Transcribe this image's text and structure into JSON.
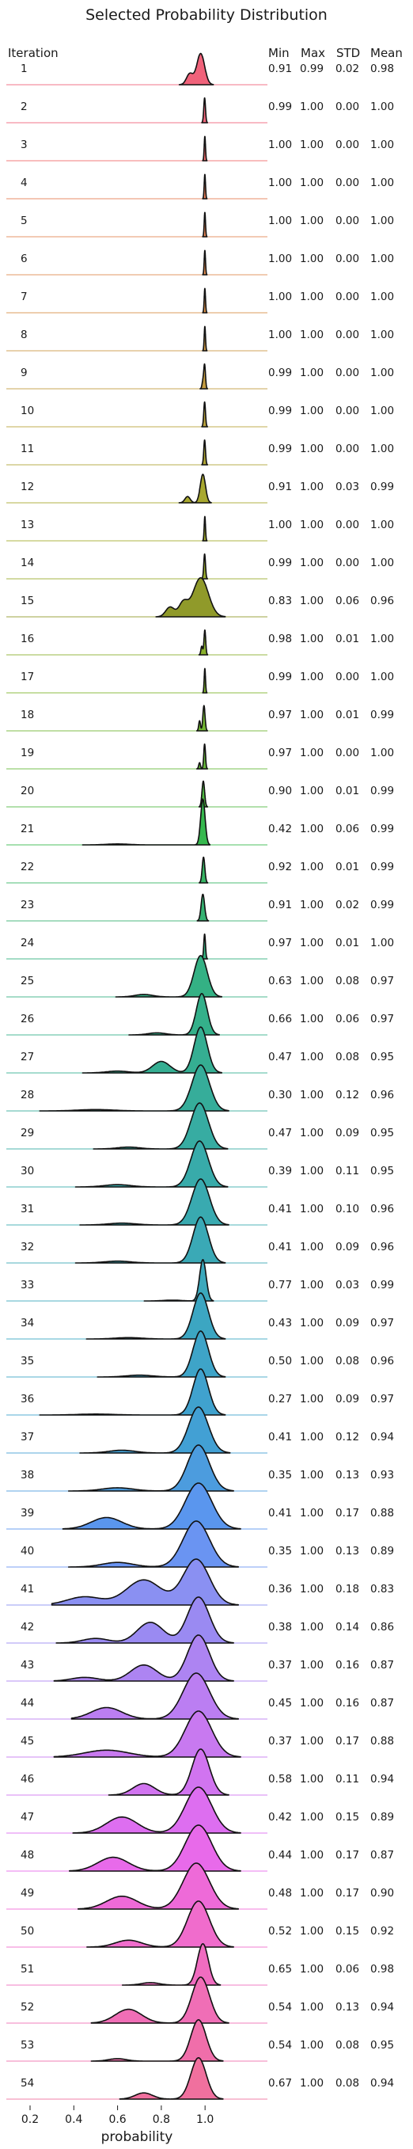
{
  "chart_data": {
    "type": "ridgeline",
    "title": "Selected Probability Distribution",
    "xlabel": "probability",
    "x_ticks": [
      "0.2",
      "0.4",
      "0.6",
      "0.8",
      "1.0"
    ],
    "xlim": [
      0.2,
      1.22
    ],
    "column_headers": {
      "iteration": "Iteration",
      "min": "Min",
      "max": "Max",
      "std": "STD",
      "mean": "Mean"
    },
    "rows": [
      {
        "iteration": "1",
        "min": "0.91",
        "max": "0.99",
        "std": "0.02",
        "mean": "0.98",
        "color": "#f0627a",
        "modes": [
          [
            0.98,
            0.018,
            1.0
          ],
          [
            0.93,
            0.015,
            0.35
          ]
        ]
      },
      {
        "iteration": "2",
        "min": "0.99",
        "max": "1.00",
        "std": "0.00",
        "mean": "1.00",
        "color": "#f0657a",
        "modes": [
          [
            0.998,
            0.004,
            1.0
          ]
        ]
      },
      {
        "iteration": "3",
        "min": "1.00",
        "max": "1.00",
        "std": "0.00",
        "mean": "1.00",
        "color": "#ee6a6a",
        "modes": [
          [
            0.999,
            0.003,
            1.0
          ]
        ]
      },
      {
        "iteration": "4",
        "min": "1.00",
        "max": "1.00",
        "std": "0.00",
        "mean": "1.00",
        "color": "#e87e57",
        "modes": [
          [
            0.999,
            0.003,
            1.0
          ]
        ]
      },
      {
        "iteration": "5",
        "min": "1.00",
        "max": "1.00",
        "std": "0.00",
        "mean": "1.00",
        "color": "#e58656",
        "modes": [
          [
            0.999,
            0.003,
            1.0
          ]
        ]
      },
      {
        "iteration": "6",
        "min": "1.00",
        "max": "1.00",
        "std": "0.00",
        "mean": "1.00",
        "color": "#e08c50",
        "modes": [
          [
            0.999,
            0.003,
            1.0
          ]
        ]
      },
      {
        "iteration": "7",
        "min": "1.00",
        "max": "1.00",
        "std": "0.00",
        "mean": "1.00",
        "color": "#d8904a",
        "modes": [
          [
            0.999,
            0.003,
            1.0
          ]
        ]
      },
      {
        "iteration": "8",
        "min": "1.00",
        "max": "1.00",
        "std": "0.00",
        "mean": "1.00",
        "color": "#cd9845",
        "modes": [
          [
            0.999,
            0.003,
            1.0
          ]
        ]
      },
      {
        "iteration": "9",
        "min": "0.99",
        "max": "1.00",
        "std": "0.00",
        "mean": "1.00",
        "color": "#c49c40",
        "modes": [
          [
            0.998,
            0.004,
            1.0
          ],
          [
            0.99,
            0.004,
            0.3
          ]
        ]
      },
      {
        "iteration": "10",
        "min": "0.99",
        "max": "1.00",
        "std": "0.00",
        "mean": "1.00",
        "color": "#b9a23c",
        "modes": [
          [
            0.998,
            0.004,
            1.0
          ]
        ]
      },
      {
        "iteration": "11",
        "min": "0.99",
        "max": "1.00",
        "std": "0.00",
        "mean": "1.00",
        "color": "#b0a534",
        "modes": [
          [
            0.998,
            0.004,
            1.0
          ]
        ]
      },
      {
        "iteration": "12",
        "min": "0.91",
        "max": "1.00",
        "std": "0.03",
        "mean": "0.99",
        "color": "#a8a82f",
        "modes": [
          [
            0.99,
            0.012,
            1.0
          ],
          [
            0.92,
            0.012,
            0.22
          ]
        ]
      },
      {
        "iteration": "13",
        "min": "1.00",
        "max": "1.00",
        "std": "0.00",
        "mean": "1.00",
        "color": "#a2aa2c",
        "modes": [
          [
            0.999,
            0.003,
            1.0
          ]
        ]
      },
      {
        "iteration": "14",
        "min": "0.99",
        "max": "1.00",
        "std": "0.00",
        "mean": "1.00",
        "color": "#9aad2c",
        "modes": [
          [
            0.998,
            0.004,
            1.0
          ]
        ]
      },
      {
        "iteration": "15",
        "min": "0.83",
        "max": "1.00",
        "std": "0.06",
        "mean": "0.96",
        "color": "#909a2a",
        "modes": [
          [
            0.98,
            0.035,
            1.0
          ],
          [
            0.9,
            0.02,
            0.35
          ],
          [
            0.84,
            0.02,
            0.25
          ]
        ]
      },
      {
        "iteration": "16",
        "min": "0.98",
        "max": "1.00",
        "std": "0.01",
        "mean": "1.00",
        "color": "#8ab12c",
        "modes": [
          [
            0.999,
            0.004,
            1.0
          ],
          [
            0.985,
            0.004,
            0.35
          ]
        ]
      },
      {
        "iteration": "17",
        "min": "0.99",
        "max": "1.00",
        "std": "0.00",
        "mean": "1.00",
        "color": "#7fb42e",
        "modes": [
          [
            0.999,
            0.003,
            1.0
          ]
        ]
      },
      {
        "iteration": "18",
        "min": "0.97",
        "max": "1.00",
        "std": "0.01",
        "mean": "0.99",
        "color": "#72b633",
        "modes": [
          [
            0.995,
            0.005,
            1.0
          ],
          [
            0.975,
            0.004,
            0.4
          ]
        ]
      },
      {
        "iteration": "19",
        "min": "0.97",
        "max": "1.00",
        "std": "0.00",
        "mean": "1.00",
        "color": "#66b83a",
        "modes": [
          [
            0.998,
            0.004,
            1.0
          ],
          [
            0.975,
            0.004,
            0.25
          ]
        ]
      },
      {
        "iteration": "20",
        "min": "0.90",
        "max": "1.00",
        "std": "0.01",
        "mean": "0.99",
        "color": "#4fba42",
        "modes": [
          [
            0.992,
            0.006,
            1.0
          ]
        ]
      },
      {
        "iteration": "21",
        "min": "0.42",
        "max": "1.00",
        "std": "0.06",
        "mean": "0.99",
        "color": "#36b84e",
        "modes": [
          [
            0.99,
            0.01,
            1.0
          ],
          [
            0.6,
            0.05,
            0.02
          ]
        ]
      },
      {
        "iteration": "22",
        "min": "0.92",
        "max": "1.00",
        "std": "0.01",
        "mean": "0.99",
        "color": "#37b564",
        "modes": [
          [
            0.993,
            0.006,
            1.0
          ]
        ]
      },
      {
        "iteration": "23",
        "min": "0.91",
        "max": "1.00",
        "std": "0.02",
        "mean": "0.99",
        "color": "#35b272",
        "modes": [
          [
            0.99,
            0.008,
            1.0
          ]
        ]
      },
      {
        "iteration": "24",
        "min": "0.97",
        "max": "1.00",
        "std": "0.01",
        "mean": "1.00",
        "color": "#33b27e",
        "modes": [
          [
            0.998,
            0.004,
            1.0
          ]
        ]
      },
      {
        "iteration": "25",
        "min": "0.63",
        "max": "1.00",
        "std": "0.08",
        "mean": "0.97",
        "color": "#34b184",
        "modes": [
          [
            0.98,
            0.03,
            1.0
          ],
          [
            0.72,
            0.04,
            0.06
          ]
        ]
      },
      {
        "iteration": "26",
        "min": "0.66",
        "max": "1.00",
        "std": "0.06",
        "mean": "0.97",
        "color": "#34b08a",
        "modes": [
          [
            0.985,
            0.025,
            1.0
          ],
          [
            0.78,
            0.04,
            0.05
          ]
        ]
      },
      {
        "iteration": "27",
        "min": "0.47",
        "max": "1.00",
        "std": "0.08",
        "mean": "0.95",
        "color": "#35ae92",
        "modes": [
          [
            0.98,
            0.03,
            1.0
          ],
          [
            0.8,
            0.04,
            0.25
          ],
          [
            0.6,
            0.05,
            0.04
          ]
        ]
      },
      {
        "iteration": "28",
        "min": "0.30",
        "max": "1.00",
        "std": "0.12",
        "mean": "0.96",
        "color": "#36ad9a",
        "modes": [
          [
            0.98,
            0.04,
            1.0
          ],
          [
            0.5,
            0.08,
            0.03
          ]
        ]
      },
      {
        "iteration": "29",
        "min": "0.47",
        "max": "1.00",
        "std": "0.09",
        "mean": "0.95",
        "color": "#37aca2",
        "modes": [
          [
            0.975,
            0.04,
            1.0
          ],
          [
            0.65,
            0.05,
            0.04
          ]
        ]
      },
      {
        "iteration": "30",
        "min": "0.39",
        "max": "1.00",
        "std": "0.11",
        "mean": "0.95",
        "color": "#38abaa",
        "modes": [
          [
            0.975,
            0.04,
            1.0
          ],
          [
            0.6,
            0.06,
            0.05
          ]
        ]
      },
      {
        "iteration": "31",
        "min": "0.41",
        "max": "1.00",
        "std": "0.10",
        "mean": "0.96",
        "color": "#39aab0",
        "modes": [
          [
            0.98,
            0.04,
            1.0
          ],
          [
            0.62,
            0.06,
            0.04
          ]
        ]
      },
      {
        "iteration": "32",
        "min": "0.41",
        "max": "1.00",
        "std": "0.09",
        "mean": "0.96",
        "color": "#3aa9b6",
        "modes": [
          [
            0.98,
            0.035,
            1.0
          ],
          [
            0.6,
            0.06,
            0.04
          ]
        ]
      },
      {
        "iteration": "33",
        "min": "0.77",
        "max": "1.00",
        "std": "0.03",
        "mean": "0.99",
        "color": "#3ba8bc",
        "modes": [
          [
            0.99,
            0.015,
            1.0
          ],
          [
            0.85,
            0.04,
            0.02
          ]
        ]
      },
      {
        "iteration": "34",
        "min": "0.43",
        "max": "1.00",
        "std": "0.09",
        "mean": "0.97",
        "color": "#3ca6c2",
        "modes": [
          [
            0.98,
            0.035,
            1.0
          ],
          [
            0.65,
            0.06,
            0.03
          ]
        ]
      },
      {
        "iteration": "35",
        "min": "0.50",
        "max": "1.00",
        "std": "0.08",
        "mean": "0.96",
        "color": "#3ea4c8",
        "modes": [
          [
            0.98,
            0.035,
            1.0
          ],
          [
            0.7,
            0.06,
            0.04
          ]
        ]
      },
      {
        "iteration": "36",
        "min": "0.27",
        "max": "1.00",
        "std": "0.09",
        "mean": "0.97",
        "color": "#40a2ce",
        "modes": [
          [
            0.98,
            0.035,
            1.0
          ],
          [
            0.5,
            0.08,
            0.02
          ]
        ]
      },
      {
        "iteration": "37",
        "min": "0.41",
        "max": "1.00",
        "std": "0.12",
        "mean": "0.94",
        "color": "#42a0d4",
        "modes": [
          [
            0.97,
            0.045,
            1.0
          ],
          [
            0.62,
            0.06,
            0.06
          ]
        ]
      },
      {
        "iteration": "38",
        "min": "0.35",
        "max": "1.00",
        "std": "0.13",
        "mean": "0.93",
        "color": "#4c9cde",
        "modes": [
          [
            0.97,
            0.05,
            1.0
          ],
          [
            0.6,
            0.07,
            0.07
          ]
        ]
      },
      {
        "iteration": "39",
        "min": "0.41",
        "max": "1.00",
        "std": "0.17",
        "mean": "0.88",
        "color": "#5a96ee",
        "modes": [
          [
            0.97,
            0.06,
            1.0
          ],
          [
            0.55,
            0.07,
            0.25
          ]
        ]
      },
      {
        "iteration": "40",
        "min": "0.35",
        "max": "1.00",
        "std": "0.13",
        "mean": "0.89",
        "color": "#6a94f2",
        "modes": [
          [
            0.96,
            0.06,
            1.0
          ],
          [
            0.6,
            0.07,
            0.1
          ]
        ]
      },
      {
        "iteration": "41",
        "min": "0.36",
        "max": "1.00",
        "std": "0.18",
        "mean": "0.83",
        "color": "#8a90f2",
        "modes": [
          [
            0.96,
            0.06,
            1.0
          ],
          [
            0.72,
            0.08,
            0.55
          ],
          [
            0.45,
            0.08,
            0.18
          ]
        ]
      },
      {
        "iteration": "42",
        "min": "0.38",
        "max": "1.00",
        "std": "0.14",
        "mean": "0.86",
        "color": "#9a8af2",
        "modes": [
          [
            0.97,
            0.05,
            1.0
          ],
          [
            0.75,
            0.06,
            0.45
          ],
          [
            0.5,
            0.06,
            0.1
          ]
        ]
      },
      {
        "iteration": "43",
        "min": "0.37",
        "max": "1.00",
        "std": "0.16",
        "mean": "0.87",
        "color": "#ad84f2",
        "modes": [
          [
            0.97,
            0.05,
            1.0
          ],
          [
            0.72,
            0.06,
            0.35
          ],
          [
            0.45,
            0.06,
            0.08
          ]
        ]
      },
      {
        "iteration": "44",
        "min": "0.45",
        "max": "1.00",
        "std": "0.16",
        "mean": "0.87",
        "color": "#bb7ef2",
        "modes": [
          [
            0.96,
            0.06,
            1.0
          ],
          [
            0.55,
            0.07,
            0.25
          ]
        ]
      },
      {
        "iteration": "45",
        "min": "0.37",
        "max": "1.00",
        "std": "0.17",
        "mean": "0.88",
        "color": "#c879f0",
        "modes": [
          [
            0.97,
            0.06,
            1.0
          ],
          [
            0.55,
            0.1,
            0.15
          ]
        ]
      },
      {
        "iteration": "46",
        "min": "0.58",
        "max": "1.00",
        "std": "0.11",
        "mean": "0.94",
        "color": "#d174f0",
        "modes": [
          [
            0.98,
            0.04,
            1.0
          ],
          [
            0.72,
            0.05,
            0.25
          ]
        ]
      },
      {
        "iteration": "47",
        "min": "0.42",
        "max": "1.00",
        "std": "0.15",
        "mean": "0.89",
        "color": "#dd6ef0",
        "modes": [
          [
            0.97,
            0.06,
            1.0
          ],
          [
            0.62,
            0.07,
            0.35
          ]
        ]
      },
      {
        "iteration": "48",
        "min": "0.44",
        "max": "1.00",
        "std": "0.17",
        "mean": "0.87",
        "color": "#e86aea",
        "modes": [
          [
            0.97,
            0.06,
            1.0
          ],
          [
            0.58,
            0.07,
            0.3
          ]
        ]
      },
      {
        "iteration": "49",
        "min": "0.48",
        "max": "1.00",
        "std": "0.17",
        "mean": "0.90",
        "color": "#ee6ad8",
        "modes": [
          [
            0.96,
            0.06,
            1.0
          ],
          [
            0.62,
            0.07,
            0.28
          ]
        ]
      },
      {
        "iteration": "50",
        "min": "0.52",
        "max": "1.00",
        "std": "0.15",
        "mean": "0.92",
        "color": "#f06ccc",
        "modes": [
          [
            0.97,
            0.05,
            1.0
          ],
          [
            0.65,
            0.06,
            0.15
          ]
        ]
      },
      {
        "iteration": "51",
        "min": "0.65",
        "max": "1.00",
        "std": "0.06",
        "mean": "0.98",
        "color": "#f06cc0",
        "modes": [
          [
            0.99,
            0.025,
            1.0
          ],
          [
            0.75,
            0.04,
            0.06
          ]
        ]
      },
      {
        "iteration": "52",
        "min": "0.54",
        "max": "1.00",
        "std": "0.13",
        "mean": "0.94",
        "color": "#f06eb6",
        "modes": [
          [
            0.98,
            0.04,
            1.0
          ],
          [
            0.65,
            0.06,
            0.3
          ]
        ]
      },
      {
        "iteration": "53",
        "min": "0.54",
        "max": "1.00",
        "std": "0.08",
        "mean": "0.95",
        "color": "#f06eaa",
        "modes": [
          [
            0.97,
            0.035,
            1.0
          ],
          [
            0.6,
            0.04,
            0.06
          ]
        ]
      },
      {
        "iteration": "54",
        "min": "0.67",
        "max": "1.00",
        "std": "0.08",
        "mean": "0.94",
        "color": "#f0709e",
        "modes": [
          [
            0.97,
            0.035,
            1.0
          ],
          [
            0.72,
            0.04,
            0.15
          ]
        ]
      }
    ]
  }
}
